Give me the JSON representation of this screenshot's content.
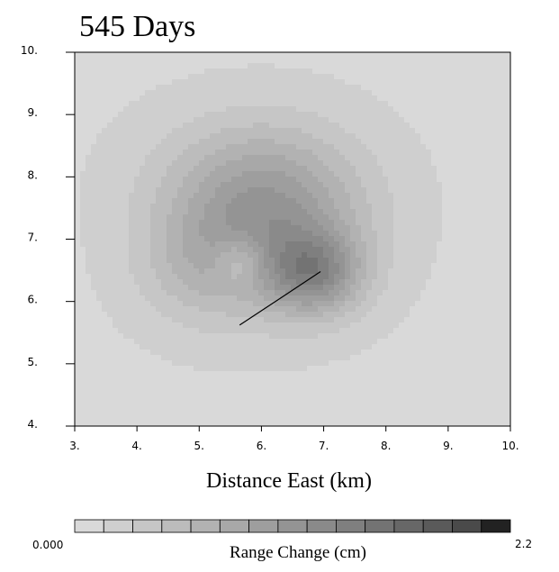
{
  "chart_data": {
    "type": "heatmap",
    "title": "545 Days",
    "xlabel": "Distance East (km)",
    "ylabel": "",
    "xlim": [
      3.0,
      10.0
    ],
    "ylim": [
      4.0,
      10.0
    ],
    "x_ticks": [
      "3.",
      "4.",
      "5.",
      "6.",
      "7.",
      "8.",
      "9.",
      "10."
    ],
    "y_ticks": [
      "4.",
      "5.",
      "6.",
      "7.",
      "8.",
      "9.",
      "10."
    ],
    "x_tick_values": [
      3,
      4,
      5,
      6,
      7,
      8,
      9,
      10
    ],
    "y_tick_values": [
      4,
      5,
      6,
      7,
      8,
      9,
      10
    ],
    "colorbar": {
      "label": "Range Change (cm)",
      "min_label": "0.000",
      "max_label": "2.2",
      "min": 0.0,
      "max": 2.2,
      "levels": 15,
      "colors": [
        "#d9d9d9",
        "#cfcfcf",
        "#c6c6c6",
        "#bcbcbc",
        "#b2b2b2",
        "#a8a8a8",
        "#9e9e9e",
        "#949494",
        "#8a8a8a",
        "#7f7f7f",
        "#737373",
        "#676767",
        "#5a5a5a",
        "#4a4a4a",
        "#222222"
      ]
    },
    "field_components": [
      {
        "cx": 6.85,
        "cy": 6.45,
        "sx": 0.75,
        "sy": 0.65,
        "amp": 0.95
      },
      {
        "cx": 6.2,
        "cy": 7.2,
        "sx": 1.5,
        "sy": 1.3,
        "amp": 0.8
      },
      {
        "cx": 5.0,
        "cy": 6.6,
        "sx": 1.1,
        "sy": 1.0,
        "amp": 0.35
      },
      {
        "cx": 5.8,
        "cy": 8.0,
        "sx": 1.7,
        "sy": 1.1,
        "amp": 0.35
      },
      {
        "cx": 5.65,
        "cy": 6.65,
        "sx": 0.4,
        "sy": 0.4,
        "amp": -0.45
      }
    ],
    "fault_trace": [
      [
        5.65,
        5.62
      ],
      [
        6.3,
        6.05
      ],
      [
        6.95,
        6.48
      ]
    ]
  }
}
